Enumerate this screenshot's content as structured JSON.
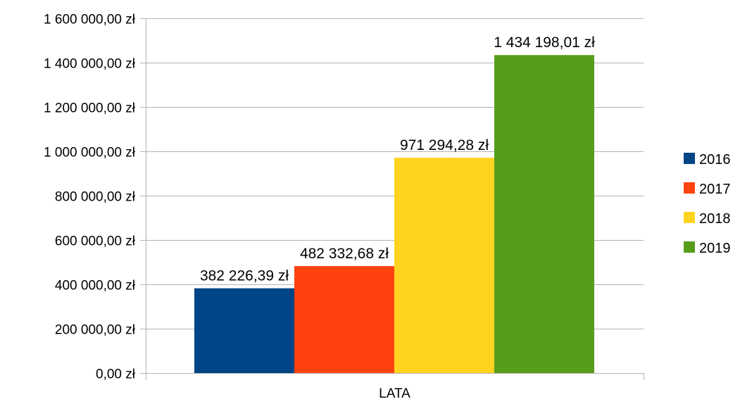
{
  "chart_data": {
    "type": "bar",
    "title": "",
    "xlabel": "",
    "ylabel": "",
    "categories": [
      "LATA"
    ],
    "series": [
      {
        "name": "2016",
        "values": [
          382226.39
        ],
        "label": "382 226,39 zł",
        "color": "#004586"
      },
      {
        "name": "2017",
        "values": [
          482332.68
        ],
        "label": "482 332,68 zł",
        "color": "#ff420e"
      },
      {
        "name": "2018",
        "values": [
          971294.28
        ],
        "label": "971 294,28 zł",
        "color": "#ffd320"
      },
      {
        "name": "2019",
        "values": [
          1434198.01
        ],
        "label": "1 434 198,01 zł",
        "color": "#579d1c"
      }
    ],
    "ylim": [
      0,
      1600000
    ],
    "yticks": [
      0,
      200000,
      400000,
      600000,
      800000,
      1000000,
      1200000,
      1400000,
      1600000
    ],
    "ytick_labels": [
      "0,00 zł",
      "200 000,00 zł",
      "400 000,00 zł",
      "600 000,00 zł",
      "800 000,00 zł",
      "1 000 000,00 zł",
      "1 200 000,00 zł",
      "1 400 000,00 zł",
      "1 600 000,00 zł"
    ],
    "grid": true,
    "legend": "right"
  }
}
